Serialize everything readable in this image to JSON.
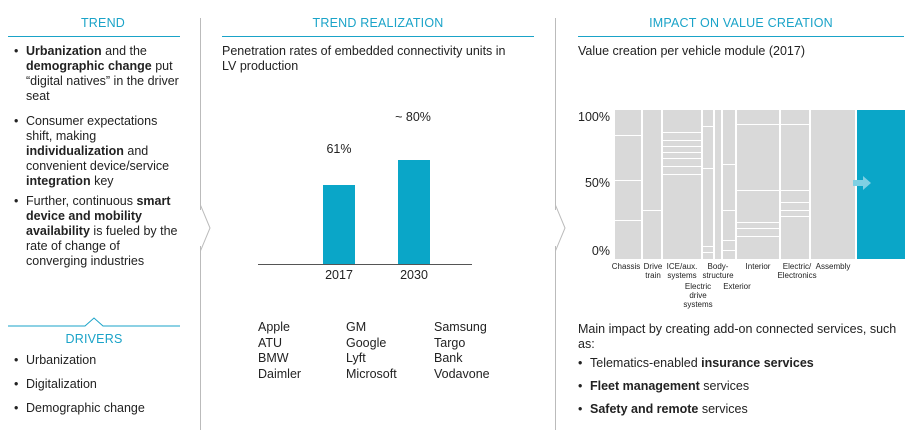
{
  "trend": {
    "header": "TREND",
    "bullets": [
      {
        "parts": [
          {
            "t": "Urbanization",
            "b": true
          },
          {
            "t": " and the ",
            "b": false
          },
          {
            "t": "demographic change",
            "b": true
          },
          {
            "t": " put “digital natives” in the driver seat",
            "b": false
          }
        ]
      },
      {
        "parts": [
          {
            "t": "Consumer expectations shift, making ",
            "b": false
          },
          {
            "t": "individualization",
            "b": true
          },
          {
            "t": " and convenient device/service ",
            "b": false
          },
          {
            "t": "integration",
            "b": true
          },
          {
            "t": " key",
            "b": false
          }
        ]
      },
      {
        "parts": [
          {
            "t": "Further, continuous ",
            "b": false
          },
          {
            "t": "smart device and mobility availability",
            "b": true
          },
          {
            "t": " is fueled by the rate of change of converging industries",
            "b": false
          }
        ]
      }
    ]
  },
  "drivers": {
    "header": "DRIVERS",
    "items": [
      "Urbanization",
      "Digitalization",
      "Demographic change"
    ]
  },
  "realization": {
    "header": "TREND REALIZATION",
    "subtitle": "Penetration rates of embedded connectivity units in LV production",
    "companies": [
      [
        "Apple",
        "ATU",
        "BMW",
        "Daimler"
      ],
      [
        "GM",
        "Google",
        "Lyft",
        "Microsoft"
      ],
      [
        "Samsung",
        "Targo",
        "Bank",
        "Vodavone"
      ]
    ]
  },
  "chart_data": [
    {
      "type": "bar",
      "categories": [
        "2017",
        "2030"
      ],
      "values": [
        61,
        80
      ],
      "data_labels": [
        "61%",
        "~ 80%"
      ],
      "title": "Penetration rates of embedded connectivity units in LV production",
      "ylim": [
        0,
        100
      ]
    },
    {
      "type": "bar",
      "title": "Value creation per vehicle module (2017)",
      "categories": [
        "Chassis",
        "Drive train",
        "ICE/aux. systems",
        "Electric drive systems",
        "Body-structure",
        "Exterior",
        "Interior",
        "Electric/ Electronics",
        "Assembly"
      ],
      "yticks": [
        "100%",
        "50%",
        "0%"
      ],
      "ylim": [
        0,
        100
      ],
      "highlight_color": "#0aa6c8",
      "base_color": "#d9d9d9"
    }
  ],
  "impact": {
    "header": "IMPACT ON VALUE CREATION",
    "subtitle": "Value creation per vehicle module (2017)",
    "intro": "Main impact by creating add-on connected services, such as:",
    "bullets": [
      {
        "parts": [
          {
            "t": "Telematics-enabled ",
            "b": false
          },
          {
            "t": "insurance services",
            "b": true
          }
        ]
      },
      {
        "parts": [
          {
            "t": "Fleet management",
            "b": true
          },
          {
            "t": " services",
            "b": false
          }
        ]
      },
      {
        "parts": [
          {
            "t": "Safety and remote",
            "b": true
          },
          {
            "t": " services",
            "b": false
          }
        ]
      }
    ]
  },
  "colors": {
    "accent": "#1aa3c8",
    "bar": "#0aa6c8",
    "grey": "#d9d9d9"
  }
}
